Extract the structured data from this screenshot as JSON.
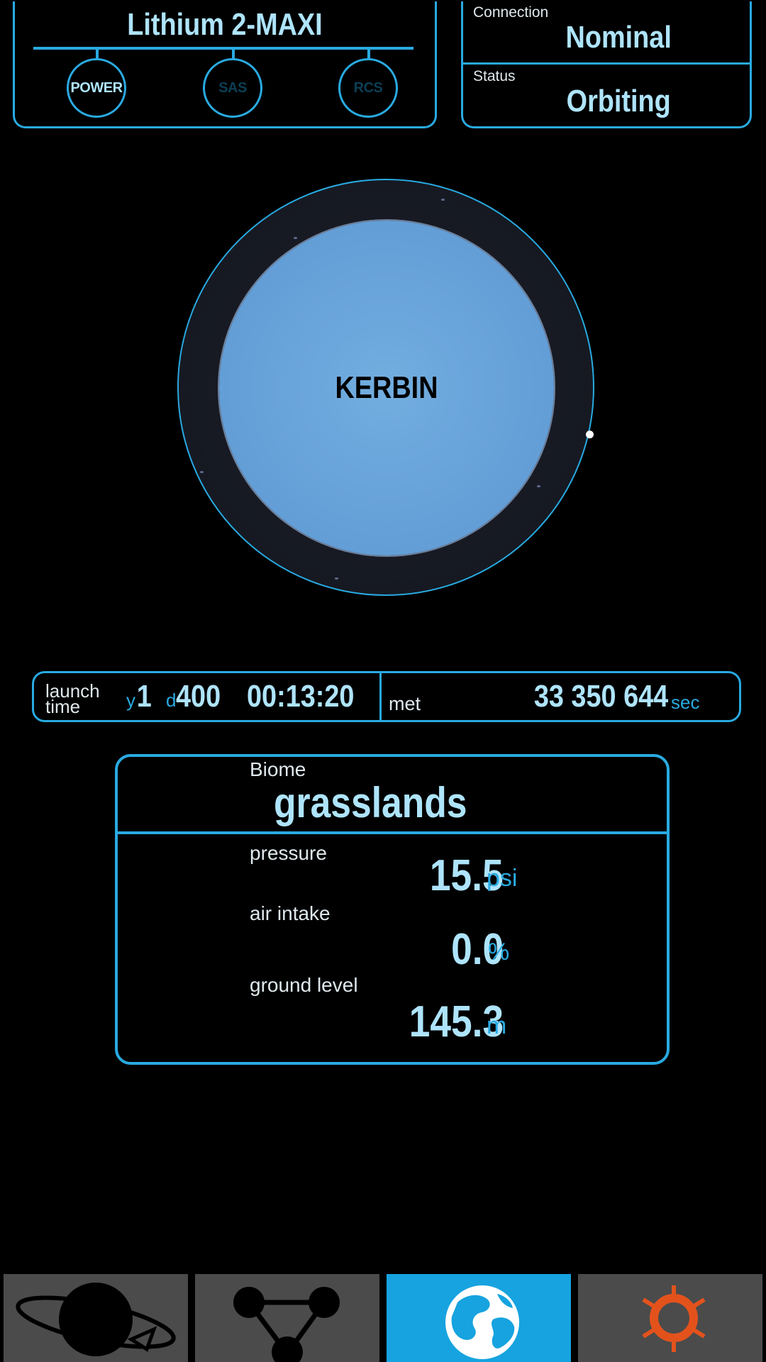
{
  "vessel": {
    "name": "Lithium 2-MAXI",
    "systems": [
      {
        "label": "POWER",
        "active": true
      },
      {
        "label": "SAS",
        "active": false
      },
      {
        "label": "RCS",
        "active": false
      }
    ]
  },
  "connection": {
    "label": "Connection",
    "value": "Nominal"
  },
  "status": {
    "label": "Status",
    "value": "Orbiting"
  },
  "body": {
    "name": "KERBIN"
  },
  "launch_time": {
    "label_line1": "launch",
    "label_line2": "time",
    "year_unit": "y",
    "year": "1",
    "day_unit": "d",
    "day": "400",
    "clock": "00:13:20"
  },
  "met": {
    "label": "met",
    "value": "33 350 644",
    "unit": "sec"
  },
  "biome": {
    "label": "Biome",
    "value": "grasslands"
  },
  "fields": {
    "pressure": {
      "label": "pressure",
      "value": "15.5",
      "unit": "psi"
    },
    "air_intake": {
      "label": "air intake",
      "value": "0.0",
      "unit": "%"
    },
    "ground_level": {
      "label": "ground level",
      "value": "145.3",
      "unit": "m"
    }
  },
  "nav": {
    "tabs": [
      {
        "icon": "planet-orbit-icon",
        "active": false
      },
      {
        "icon": "maneuver-nodes-icon",
        "active": false
      },
      {
        "icon": "globe-icon",
        "active": true
      },
      {
        "icon": "sun-icon",
        "active": false
      }
    ]
  },
  "colors": {
    "accent": "#29aae1",
    "text_value": "#aee4fb",
    "nav_active": "#16a3df",
    "nav_inactive": "#4b4b4b",
    "sun_orange": "#e4521c"
  }
}
